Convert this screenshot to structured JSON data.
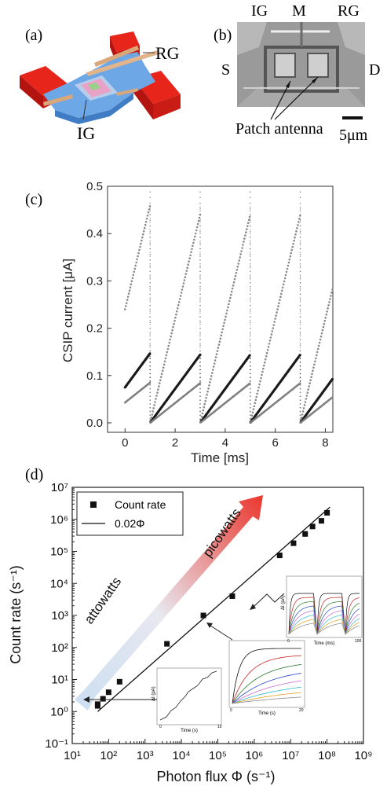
{
  "panel_a": {
    "label": "(a)",
    "gate_rg": "RG",
    "gate_ig": "IG"
  },
  "panel_b": {
    "label": "(b)",
    "top_labels": [
      "IG",
      "M",
      "RG"
    ],
    "left_label": "S",
    "right_label": "D",
    "antenna_label": "Patch antenna",
    "scale_label": "5μm"
  },
  "chart_data": [
    {
      "panel": "(c)",
      "type": "scatter",
      "xlabel": "Time [ms]",
      "ylabel": "CSIP current [μA]",
      "xlim": [
        -0.7,
        8.3
      ],
      "ylim": [
        -0.02,
        0.5
      ],
      "xticks": [
        0,
        2,
        4,
        6,
        8
      ],
      "yticks": [
        0.0,
        0.1,
        0.2,
        0.3,
        0.4,
        0.5
      ],
      "reset_times": [
        1,
        3,
        5,
        7
      ],
      "series": [
        {
          "color": "#8a8a8a",
          "sawtooth": {
            "start_x": 0.0,
            "start_y": 0.24,
            "rise_per_ms": 0.22,
            "reset_y": 0.0,
            "peak_y": 0.46
          }
        },
        {
          "color": "#1a1a1a",
          "sawtooth": {
            "start_x": 0.0,
            "start_y": 0.075,
            "rise_per_ms": 0.072,
            "reset_y": 0.0,
            "peak_y": 0.145
          }
        },
        {
          "color": "#808080",
          "sawtooth": {
            "start_x": 0.0,
            "start_y": 0.043,
            "rise_per_ms": 0.042,
            "reset_y": 0.0,
            "peak_y": 0.085
          }
        }
      ]
    },
    {
      "panel": "(d)",
      "type": "scatter",
      "xlabel": "Photon flux Φ (s⁻¹)",
      "ylabel": "Count rate (s⁻¹)",
      "xscale": "log",
      "yscale": "log",
      "xlim": [
        10,
        1000000000.0
      ],
      "ylim": [
        0.1,
        10000000.0
      ],
      "xtick_labels": [
        "10¹",
        "10²",
        "10³",
        "10⁴",
        "10⁵",
        "10⁶",
        "10⁷",
        "10⁸",
        "10⁹"
      ],
      "ytick_labels": [
        "10⁻¹",
        "10⁰",
        "10¹",
        "10²",
        "10³",
        "10⁴",
        "10⁵",
        "10⁶",
        "10⁷"
      ],
      "legend": [
        "Count rate",
        "0.02Φ"
      ],
      "legend_position": "top-left",
      "count_rate": {
        "x": [
          50,
          50,
          70,
          100,
          200,
          4000,
          40000,
          250000,
          5000000,
          12000000,
          25000000,
          40000000,
          70000000,
          100000000
        ],
        "y": [
          1.7,
          1.5,
          2.5,
          4.0,
          8.5,
          130,
          1000,
          4000,
          75000,
          180000,
          350000,
          600000,
          900000,
          1600000
        ]
      },
      "fit": {
        "name": "0.02Φ",
        "slope": 0.02
      },
      "annotations": [
        "picowatts",
        "attowatts"
      ]
    }
  ],
  "insets": {
    "left": {
      "ylabel": "ΔI (pA)",
      "xlabel": "Time (s)",
      "xticks": [
        "0",
        "2",
        "4",
        "6",
        "8",
        "10"
      ]
    },
    "middle": {
      "xlabel": "Time (s)",
      "xticks": [
        "0",
        "5",
        "10",
        "15",
        "20"
      ]
    },
    "right": {
      "ylabel": "ΔI (pA)",
      "xlabel": "Time (ms)",
      "xticks": [
        "0",
        "20",
        "40",
        "60",
        "80",
        "100"
      ]
    }
  },
  "colors": {
    "bar_red": "#e8251b",
    "mesa_blue": "#5f9ee0",
    "gate_tan": "#d9a77a",
    "arrow_red": "#e8251b",
    "arrow_blue": "#c7dcf2"
  }
}
